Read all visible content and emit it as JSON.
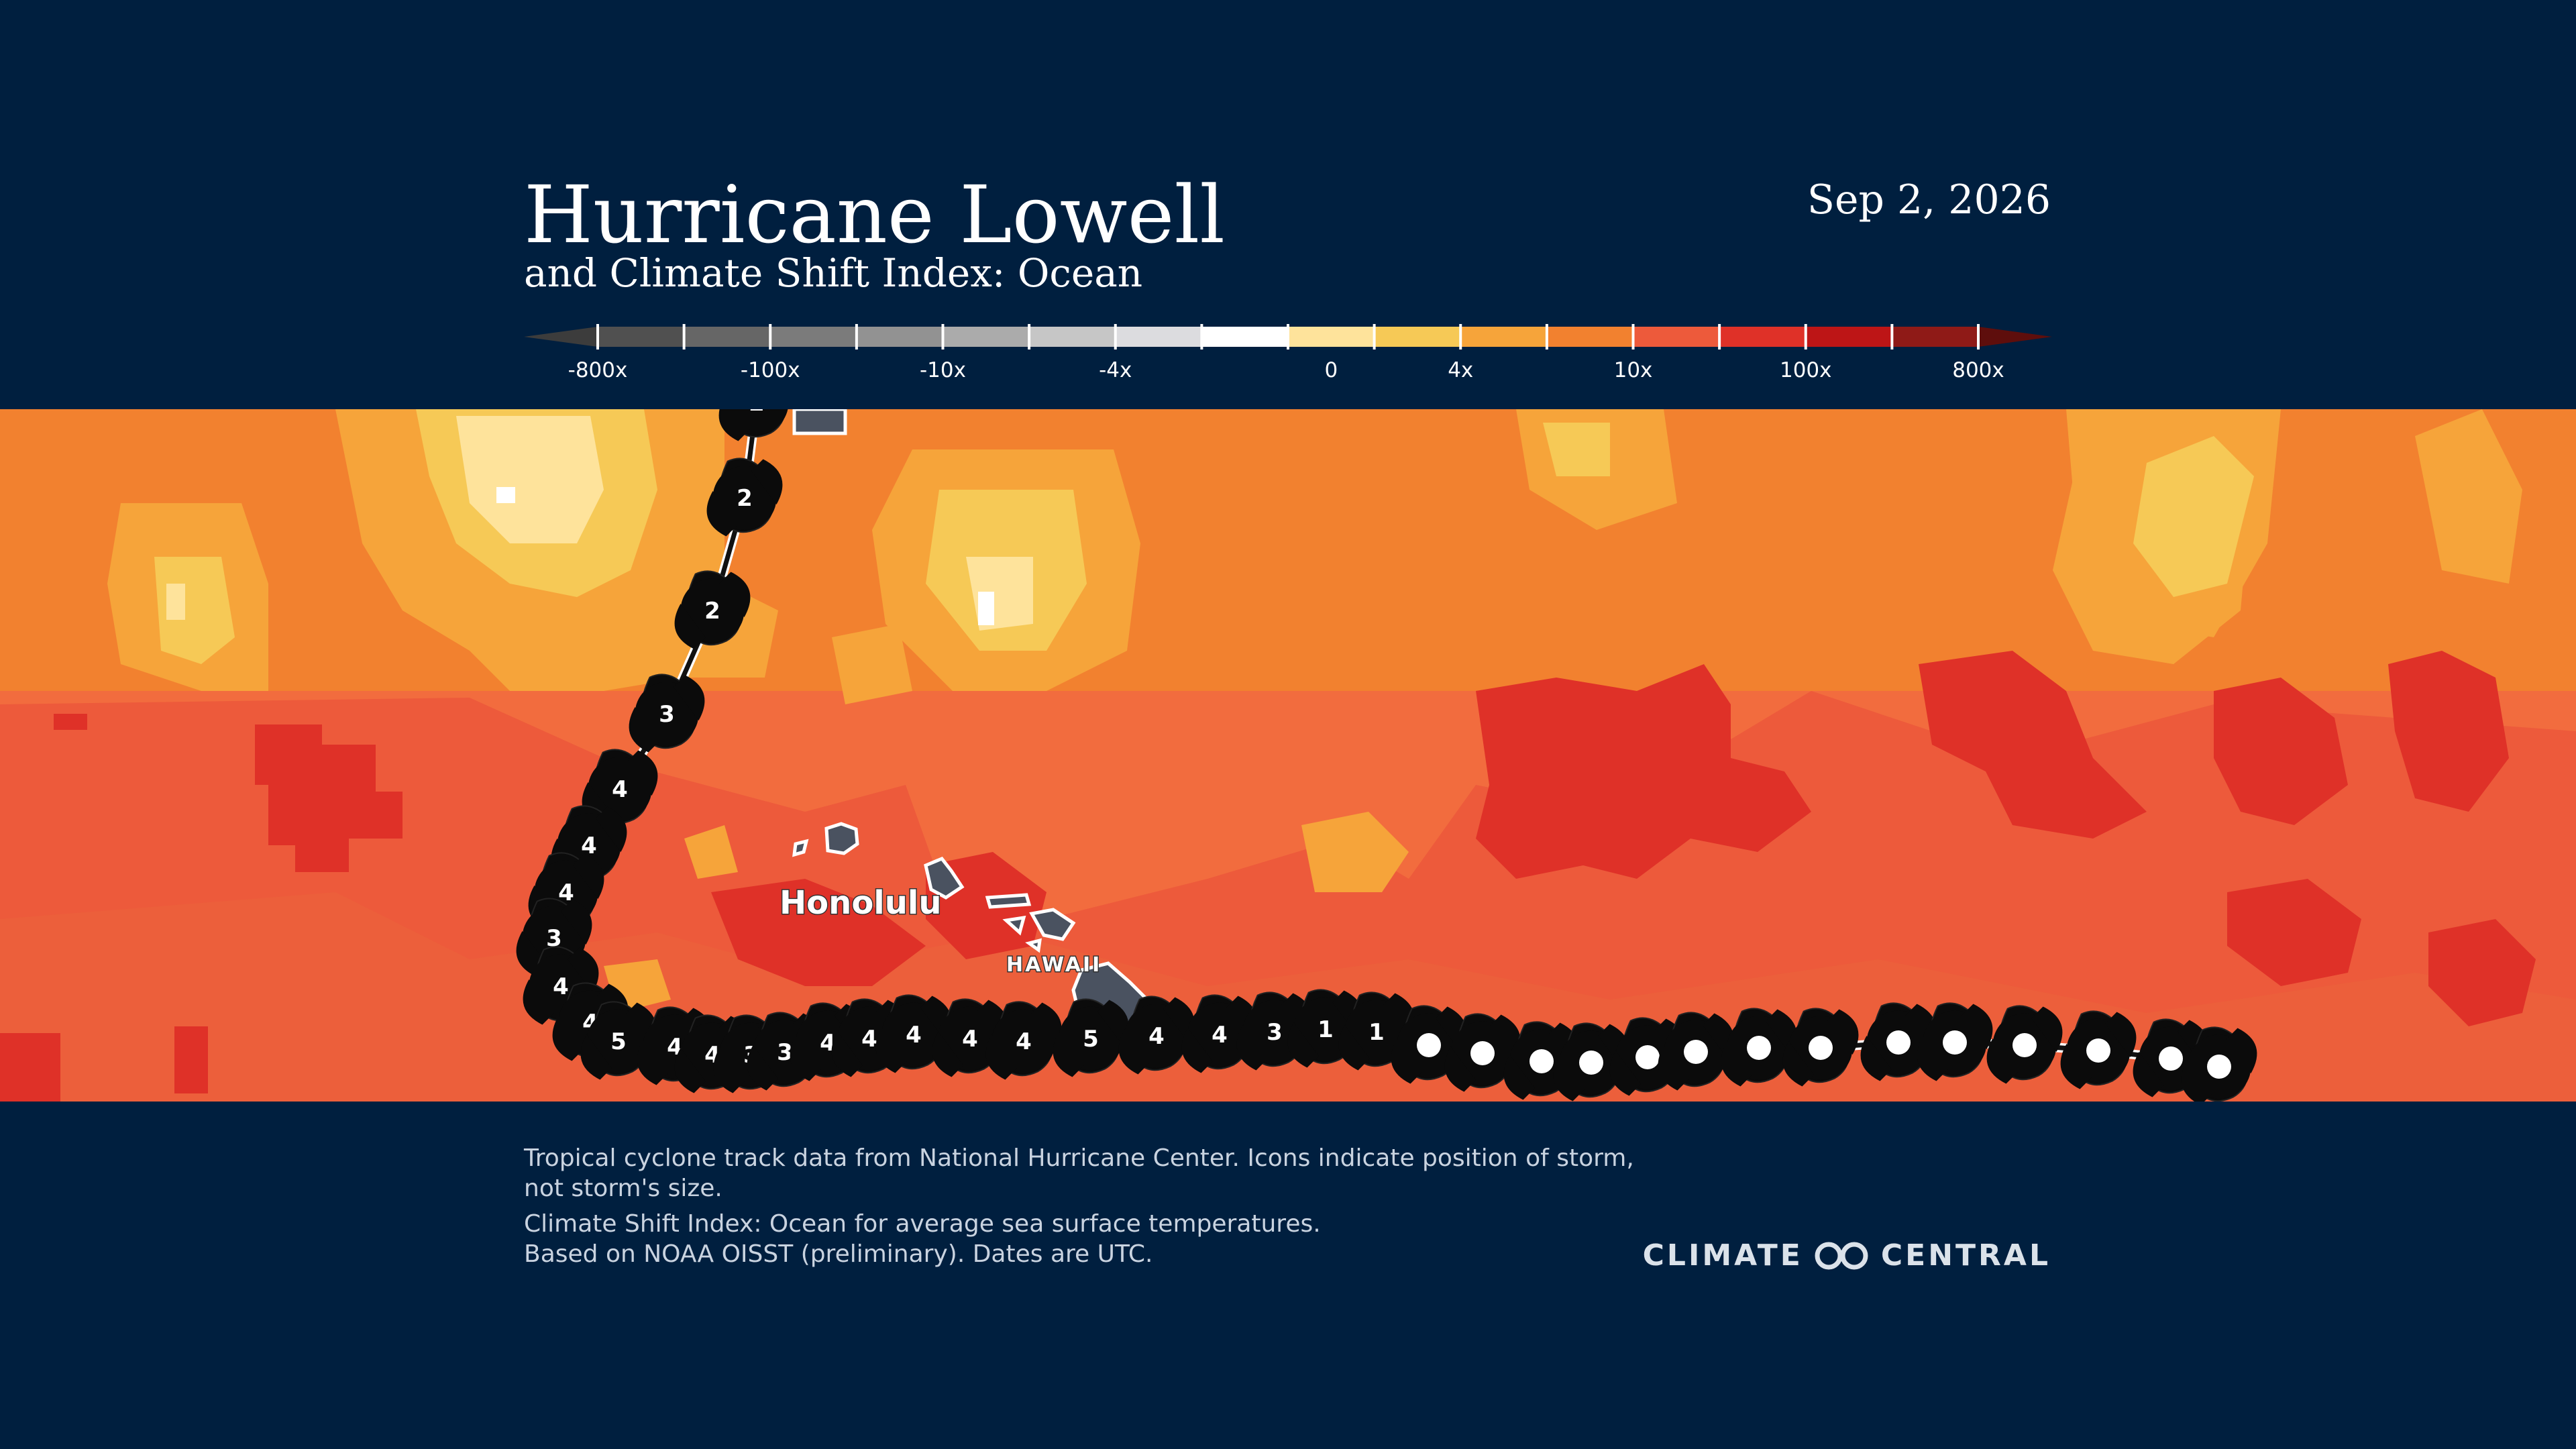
{
  "header": {
    "title": "Hurricane Lowell",
    "subtitle": "and Climate Shift Index: Ocean",
    "date": "Sep 2, 2026"
  },
  "legend": {
    "colors": [
      "#3c3c3c",
      "#505050",
      "#666666",
      "#7b7b7b",
      "#929292",
      "#ababab",
      "#c6c6c6",
      "#dcdcdf",
      "#ffffff",
      "#fee39b",
      "#f6c956",
      "#f6a43a",
      "#f2812f",
      "#ed5a3b",
      "#df3128",
      "#bd1516",
      "#8f1a17",
      "#5e0e0c"
    ],
    "labels": [
      "-800x",
      "-100x",
      "-10x",
      "-4x",
      "0",
      "4x",
      "10x",
      "100x",
      "800x"
    ]
  },
  "map": {
    "places": {
      "honolulu": "Honolulu",
      "hawaii": "HAWAII"
    },
    "track": [
      {
        "category": "2"
      },
      {
        "category": "2"
      },
      {
        "category": "2"
      },
      {
        "category": "3"
      },
      {
        "category": "4"
      },
      {
        "category": "4"
      },
      {
        "category": "4"
      },
      {
        "category": "3"
      },
      {
        "category": "4"
      },
      {
        "category": "4"
      },
      {
        "category": "5"
      },
      {
        "category": "4"
      },
      {
        "category": "4"
      },
      {
        "category": "3"
      },
      {
        "category": "3"
      },
      {
        "category": "4"
      },
      {
        "category": "4"
      },
      {
        "category": "4"
      },
      {
        "category": "4"
      },
      {
        "category": "4"
      },
      {
        "category": "5"
      },
      {
        "category": "4"
      },
      {
        "category": "4"
      },
      {
        "category": "3"
      },
      {
        "category": "1"
      },
      {
        "category": "1"
      },
      {
        "category": ""
      },
      {
        "category": ""
      },
      {
        "category": ""
      },
      {
        "category": ""
      },
      {
        "category": ""
      },
      {
        "category": ""
      },
      {
        "category": ""
      },
      {
        "category": ""
      },
      {
        "category": ""
      },
      {
        "category": ""
      },
      {
        "category": ""
      },
      {
        "category": ""
      },
      {
        "category": ""
      },
      {
        "category": ""
      }
    ]
  },
  "footer": {
    "note1": "Tropical cyclone track data from National Hurricane Center. Icons indicate position of storm, not storm's size.",
    "note2": "Climate Shift Index: Ocean for average sea surface temperatures.",
    "note3": "Based on NOAA OISST (preliminary). Dates are UTC.",
    "logo_left": "CLIMATE",
    "logo_right": "CENTRAL"
  }
}
